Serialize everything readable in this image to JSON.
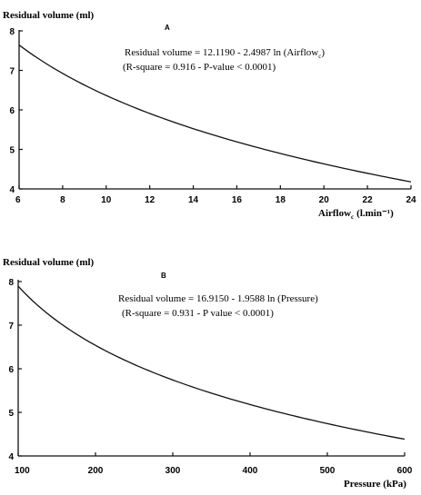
{
  "chart_data": [
    {
      "type": "line",
      "panel_label": "A",
      "ylabel": "Residual volume (ml)",
      "xlabel_main": "Airflow",
      "xlabel_sub": "c",
      "xlabel_unit": "(l.min⁻¹)",
      "xlim": [
        6,
        24
      ],
      "ylim": [
        4,
        8
      ],
      "xticks": [
        "6",
        "8",
        "10",
        "12",
        "14",
        "16",
        "18",
        "20",
        "22",
        "24"
      ],
      "yticks": [
        "4",
        "5",
        "6",
        "7",
        "8"
      ],
      "equation": {
        "text": "Residual volume = 12.1190 - 2.4987 ln (Airflow",
        "sub": "c",
        "close": ")"
      },
      "stats": "(R-square = 0.916 - P-value < 0.0001)",
      "curve": {
        "a": 12.119,
        "b": 2.4987,
        "x_from": 6,
        "x_to": 24
      }
    },
    {
      "type": "line",
      "panel_label": "B",
      "ylabel": "Residual volume (ml)",
      "xlabel_main": "Pressure (kPa)",
      "xlim": [
        100,
        600
      ],
      "ylim": [
        4,
        8
      ],
      "xticks": [
        "100",
        "200",
        "300",
        "400",
        "500",
        "600"
      ],
      "yticks": [
        "4",
        "5",
        "6",
        "7",
        "8"
      ],
      "equation": {
        "text": "Residual volume = 16.9150 - 1.9588 ln (Pressure)"
      },
      "stats": "(R-square = 0.931 - P value < 0.0001)",
      "curve": {
        "a": 16.915,
        "b": 1.9588,
        "x_from": 100,
        "x_to": 600
      }
    }
  ]
}
